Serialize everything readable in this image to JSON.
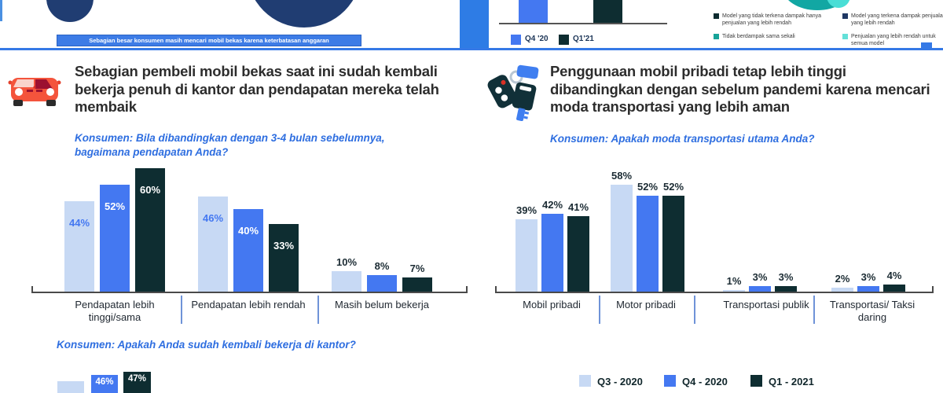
{
  "colors": {
    "light_blue": "#c7d9f4",
    "mid_blue": "#4478f1",
    "dark_teal": "#0e2d31",
    "accent_line_blue": "#3579e6",
    "question_blue": "#2e6ee0",
    "navy_circle": "#203d72",
    "teal": "#12a7a3",
    "teal_light": "#49ded6"
  },
  "top_strip": {
    "banner_text": "Sebagian besar konsumen masih mencari mobil bekas karena keterbatasan anggaran",
    "mini_legend": [
      {
        "label": "Q4 '20",
        "color": "#4478f1"
      },
      {
        "label": "Q1'21",
        "color": "#0e2d31"
      }
    ],
    "impact_legend": [
      {
        "label": "Model yang tidak terkena dampak hanya penjualan yang lebih rendah",
        "color": "#0d2b30"
      },
      {
        "label": "Model yang terkena dampak penjualan yang lebih rendah",
        "color": "#1f3864"
      },
      {
        "label": "Tidak berdampak sama sekali",
        "color": "#17a398"
      },
      {
        "label": "Penjualan yang lebih rendah untuk semua model",
        "color": "#63e0d8"
      }
    ]
  },
  "left_panel": {
    "heading": "Sebagian pembeli mobil bekas saat ini sudah kembali bekerja penuh di kantor dan pendapatan mereka telah membaik",
    "question1_prefix": "Konsumen:",
    "question1_text": " Bila dibandingkan dengan 3-4 bulan sebelumnya, bagaimana pendapatan Anda?",
    "question2_prefix": "Konsumen:",
    "question2_text": " Apakah Anda sudah kembali bekerja di kantor?"
  },
  "right_panel": {
    "heading": "Penggunaan mobil pribadi tetap lebih tinggi dibandingkan dengan sebelum pandemi karena mencari moda transportasi yang lebih aman",
    "question_prefix": "Konsumen:",
    "question_text": " Apakah moda transportasi utama Anda?"
  },
  "quarter_legend": [
    {
      "label": "Q3 - 2020",
      "color": "#c7d9f4"
    },
    {
      "label": "Q4 - 2020",
      "color": "#4478f1"
    },
    {
      "label": "Q1 - 2021",
      "color": "#0e2d31"
    }
  ],
  "chart_data": [
    {
      "type": "bar",
      "title": "Konsumen: Bila dibandingkan dengan 3-4 bulan sebelumnya, bagaimana pendapatan Anda?",
      "categories": [
        "Pendapatan lebih tinggi/sama",
        "Pendapatan lebih rendah",
        "Masih belum bekerja"
      ],
      "series": [
        {
          "name": "Q3 - 2020",
          "color": "#c7d9f4",
          "values": [
            44,
            46,
            10
          ]
        },
        {
          "name": "Q4 - 2020",
          "color": "#4478f1",
          "values": [
            52,
            40,
            8
          ]
        },
        {
          "name": "Q1 - 2021",
          "color": "#0e2d31",
          "values": [
            60,
            33,
            7
          ]
        }
      ],
      "value_suffix": "%",
      "ylim": [
        0,
        65
      ],
      "grid": false,
      "legend_position": "shared bottom-right"
    },
    {
      "type": "bar",
      "title": "Konsumen: Apakah moda transportasi utama Anda?",
      "categories": [
        "Mobil pribadi",
        "Motor pribadi",
        "Transportasi publik",
        "Transportasi/ Taksi daring"
      ],
      "series": [
        {
          "name": "Q3 - 2020",
          "color": "#c7d9f4",
          "values": [
            39,
            58,
            1,
            2
          ]
        },
        {
          "name": "Q4 - 2020",
          "color": "#4478f1",
          "values": [
            42,
            52,
            3,
            3
          ]
        },
        {
          "name": "Q1 - 2021",
          "color": "#0e2d31",
          "values": [
            41,
            52,
            3,
            4
          ]
        }
      ],
      "value_suffix": "%",
      "ylim": [
        0,
        65
      ],
      "grid": false,
      "legend_position": "shared bottom-right"
    },
    {
      "type": "bar",
      "title": "Konsumen: Apakah Anda sudah kembali bekerja di kantor? (chart cut off at bottom edge)",
      "categories": [
        ""
      ],
      "series": [
        {
          "name": "Q3 - 2020",
          "color": "#c7d9f4",
          "values": [
            null
          ]
        },
        {
          "name": "Q4 - 2020",
          "color": "#4478f1",
          "values": [
            46
          ]
        },
        {
          "name": "Q1 - 2021",
          "color": "#0e2d31",
          "values": [
            47
          ]
        }
      ],
      "value_suffix": "%"
    }
  ]
}
